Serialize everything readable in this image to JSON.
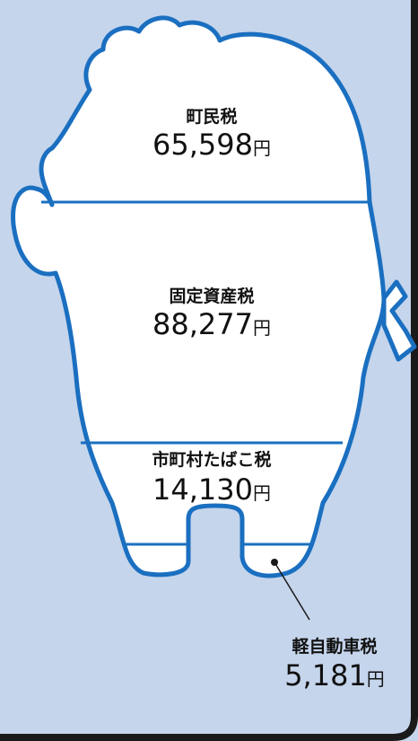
{
  "segments": [
    {
      "label": "町民税",
      "amount": "65,598",
      "unit": "円"
    },
    {
      "label": "固定資産税",
      "amount": "88,277",
      "unit": "円"
    },
    {
      "label": "市町村たばこ税",
      "amount": "14,130",
      "unit": "円"
    },
    {
      "label": "軽自動車税",
      "amount": "5,181",
      "unit": "円"
    }
  ]
}
